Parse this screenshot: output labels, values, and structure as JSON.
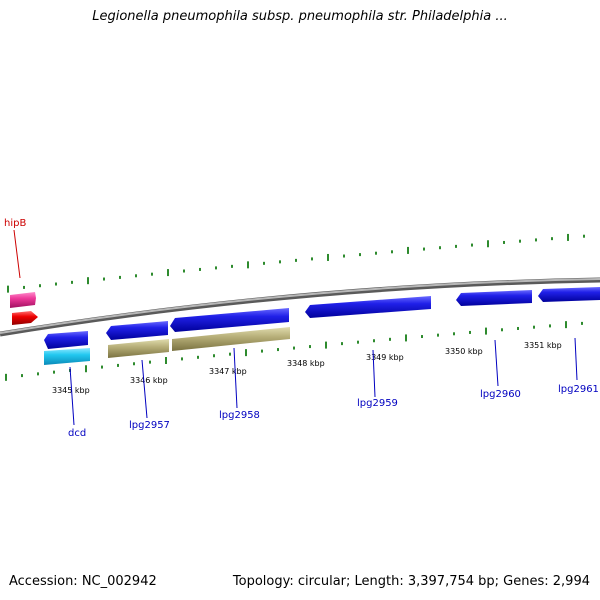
{
  "title": "Legionella pneumophila subsp. pneumophila str. Philadelphia ...",
  "footer": {
    "accession": "Accession: NC_002942",
    "summary": "Topology: circular; Length: 3,397,754 bp; Genes: 2,994"
  },
  "axis_labels": [
    "3345 kbp",
    "3346 kbp",
    "3347 kbp",
    "3348 kbp",
    "3349 kbp",
    "3350 kbp",
    "3351 kbp"
  ],
  "gene_labels": [
    {
      "name": "hipB",
      "color": "#cc0000"
    },
    {
      "name": "dcd",
      "color": "#0000c0"
    },
    {
      "name": "lpg2957",
      "color": "#0000c0"
    },
    {
      "name": "lpg2958",
      "color": "#0000c0"
    },
    {
      "name": "lpg2959",
      "color": "#0000c0"
    },
    {
      "name": "lpg2960",
      "color": "#0000c0"
    },
    {
      "name": "lpg2961",
      "color": "#0000c0"
    }
  ],
  "colors": {
    "backbone": "#8a8a8a",
    "tick": "#2e8b2e",
    "cds_blue": "#1a1adb",
    "cds_cyan": "#22c8f0",
    "cds_khaki": "#b8b07a",
    "cds_magenta": "#ee3a9a",
    "cds_red": "#ee0000"
  }
}
